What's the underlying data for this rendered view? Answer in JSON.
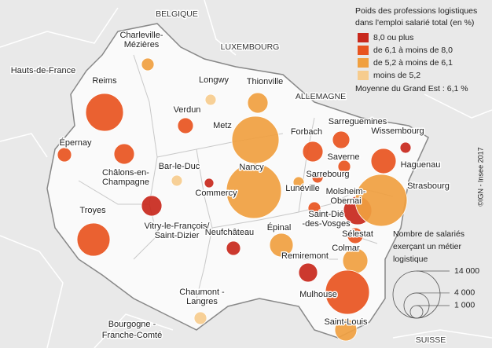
{
  "legend": {
    "title": [
      "Poids des professions logistiques",
      "dans l'emploi salarié total (en %)"
    ],
    "classes": [
      {
        "label": "8,0 ou plus",
        "color": "#c8281c"
      },
      {
        "label": "de 6,1 à moins de 8,0",
        "color": "#e8541f"
      },
      {
        "label": "de 5,2 à moins de 6,1",
        "color": "#f0a040"
      },
      {
        "label": "moins de 5,2",
        "color": "#f6cc8e"
      }
    ],
    "average": "Moyenne du Grand Est : 6,1 %",
    "size_title": [
      "Nombre de salariés",
      "exerçant un métier",
      "logistique"
    ],
    "size_ticks": [
      {
        "value": 14000,
        "label": "14 000"
      },
      {
        "value": 4000,
        "label": "4 000"
      },
      {
        "value": 1000,
        "label": "1 000"
      }
    ]
  },
  "countries": [
    "BELGIQUE",
    "LUXEMBOURG",
    "ALLEMAGNE",
    "SUISSE"
  ],
  "regions": [
    [
      "Hauts-de-France"
    ],
    [
      "Bourgogne -",
      "Franche-Comté"
    ]
  ],
  "credit": "©IGN - Insee 2017",
  "areas": [
    {
      "name": [
        "Charleville-",
        "Mézières"
      ],
      "workers": 1000,
      "class": 2
    },
    {
      "name": [
        "Reims"
      ],
      "workers": 8960,
      "class": 1
    },
    {
      "name": [
        "Épernay"
      ],
      "workers": 1260,
      "class": 1
    },
    {
      "name": [
        "Châlons-en-",
        "Champagne"
      ],
      "workers": 2630,
      "class": 1
    },
    {
      "name": [
        "Troyes"
      ],
      "workers": 6860,
      "class": 1
    },
    {
      "name": [
        "Vitry-le-François/",
        "Saint-Dizier"
      ],
      "workers": 2630,
      "class": 0
    },
    {
      "name": [
        "Bar-le-Duc"
      ],
      "workers": 760,
      "class": 3
    },
    {
      "name": [
        "Commercy"
      ],
      "workers": 560,
      "class": 0
    },
    {
      "name": [
        "Verdun"
      ],
      "workers": 1560,
      "class": 1
    },
    {
      "name": [
        "Longwy"
      ],
      "workers": 760,
      "class": 3
    },
    {
      "name": [
        "Thionville"
      ],
      "workers": 2630,
      "class": 2
    },
    {
      "name": [
        "Metz"
      ],
      "workers": 14000,
      "class": 2
    },
    {
      "name": [
        "Nancy"
      ],
      "workers": 19060,
      "class": 2
    },
    {
      "name": [
        "Neufchâteau"
      ],
      "workers": 1260,
      "class": 0
    },
    {
      "name": [
        "Épinal"
      ],
      "workers": 3500,
      "class": 2
    },
    {
      "name": [
        "Chaumont -",
        "Langres"
      ],
      "workers": 1000,
      "class": 3
    },
    {
      "name": [
        "Forbach"
      ],
      "workers": 2630,
      "class": 1
    },
    {
      "name": [
        "Sarreguemines"
      ],
      "workers": 1880,
      "class": 1
    },
    {
      "name": [
        "Wissembourg"
      ],
      "workers": 760,
      "class": 0
    },
    {
      "name": [
        "Saverne"
      ],
      "workers": 1000,
      "class": 1
    },
    {
      "name": [
        "Haguenau"
      ],
      "workers": 3980,
      "class": 1
    },
    {
      "name": [
        "Sarrebourg"
      ],
      "workers": 760,
      "class": 1
    },
    {
      "name": [
        "Lunéville"
      ],
      "workers": 760,
      "class": 2
    },
    {
      "name": [
        "Molsheim-",
        "Obernai"
      ],
      "workers": 5040,
      "class": 0
    },
    {
      "name": [
        "Strasbourg"
      ],
      "workers": 16940,
      "class": 2
    },
    {
      "name": [
        "Saint-Dié",
        "-des-Vosges"
      ],
      "workers": 1000,
      "class": 1
    },
    {
      "name": [
        "Sélestat"
      ],
      "workers": 1560,
      "class": 1
    },
    {
      "name": [
        "Colmar"
      ],
      "workers": 3980,
      "class": 2
    },
    {
      "name": [
        "Remiremont"
      ],
      "workers": 2240,
      "class": 0
    },
    {
      "name": [
        "Mulhouse"
      ],
      "workers": 12200,
      "class": 1
    },
    {
      "name": [
        "Saint-Louis"
      ],
      "workers": 3050,
      "class": 2
    }
  ]
}
